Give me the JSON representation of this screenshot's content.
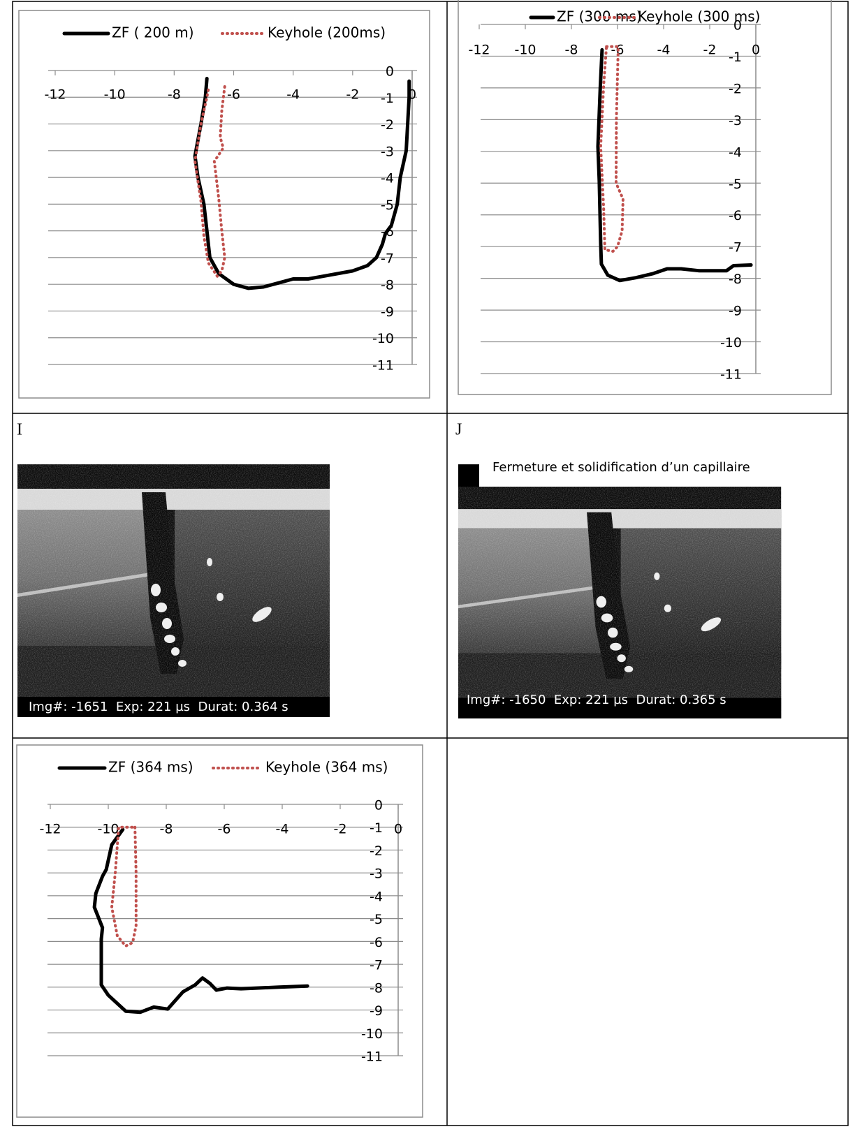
{
  "chart_data": [
    {
      "type": "line",
      "xlim": [
        -12,
        0
      ],
      "ylim": [
        -11,
        0
      ],
      "xticks": [
        -12,
        -10,
        -8,
        -6,
        -4,
        -2,
        0
      ],
      "yticks": [
        0,
        -1,
        -2,
        -3,
        -4,
        -5,
        -6,
        -7,
        -8,
        -9,
        -10,
        -11
      ],
      "grid": true,
      "series": [
        {
          "name": "ZF ( 200 m)",
          "color": "#000000",
          "style": "solid",
          "x": [
            -6.9,
            -6.95,
            -7.1,
            -7.3,
            -7.2,
            -7.0,
            -6.9,
            -6.8,
            -6.5,
            -6.0,
            -5.5,
            -5.0,
            -4.5,
            -4.0,
            -3.5,
            -3.0,
            -2.0,
            -1.5,
            -1.2,
            -1.0,
            -0.9,
            -0.7,
            -0.5,
            -0.4,
            -0.2,
            -0.15,
            -0.1,
            -0.1
          ],
          "values": [
            -0.3,
            -1,
            -2,
            -3.2,
            -4,
            -5,
            -6,
            -7,
            -7.6,
            -8,
            -8.15,
            -8.1,
            -7.95,
            -7.8,
            -7.8,
            -7.7,
            -7.5,
            -7.3,
            -7.0,
            -6.5,
            -6.1,
            -5.8,
            -5,
            -4,
            -3,
            -2,
            -1,
            -0.4
          ]
        },
        {
          "name": "Keyhole (200ms)",
          "color": "#c0504d",
          "style": "dotted",
          "x": [
            -6.3,
            -6.4,
            -6.45,
            -6.35,
            -6.65,
            -6.5,
            -6.4,
            -6.3,
            -6.4,
            -6.55,
            -6.85,
            -7.0,
            -7.1,
            -7.3,
            -7.1,
            -6.9,
            -6.85
          ],
          "values": [
            -0.6,
            -1.5,
            -2.5,
            -2.9,
            -3.4,
            -4.8,
            -6.0,
            -7.0,
            -7.5,
            -7.7,
            -7.2,
            -6.2,
            -4.9,
            -3.4,
            -2.0,
            -1.0,
            -0.7
          ]
        }
      ]
    },
    {
      "type": "line",
      "xlim": [
        -12,
        0
      ],
      "ylim": [
        -11,
        0
      ],
      "xticks": [
        -12,
        -10,
        -8,
        -6,
        -4,
        -2,
        0
      ],
      "yticks": [
        0,
        -1,
        -2,
        -3,
        -4,
        -5,
        -6,
        -7,
        -8,
        -9,
        -10,
        -11
      ],
      "grid": true,
      "series": [
        {
          "name": "ZF (300 ms)",
          "color": "#000000",
          "style": "solid",
          "x": [
            -6.67,
            -6.75,
            -6.85,
            -6.79,
            -6.73,
            -6.7,
            -6.42,
            -5.9,
            -5.2,
            -4.45,
            -3.85,
            -3.24,
            -2.48,
            -1.27,
            -0.97,
            -0.21
          ],
          "values": [
            -0.8,
            -2,
            -3.85,
            -4.95,
            -6.9,
            -7.55,
            -7.9,
            -8.07,
            -7.98,
            -7.85,
            -7.7,
            -7.7,
            -7.76,
            -7.76,
            -7.6,
            -7.58
          ]
        },
        {
          "name": "Keyhole (300 ms)",
          "color": "#c0504d",
          "style": "dotted",
          "x": [
            -6.48,
            -5.97,
            -6.05,
            -6.06,
            -5.76,
            -5.8,
            -6.0,
            -6.2,
            -6.55,
            -6.6,
            -6.73,
            -6.6,
            -6.48
          ],
          "values": [
            -0.7,
            -0.7,
            -3,
            -5.0,
            -5.5,
            -6.5,
            -7.0,
            -7.15,
            -7.1,
            -5.8,
            -3.85,
            -1.9,
            -0.7
          ]
        }
      ]
    },
    {
      "type": "line",
      "xlim": [
        -12,
        0
      ],
      "ylim": [
        -11,
        0
      ],
      "xticks": [
        -12,
        -10,
        -8,
        -6,
        -4,
        -2,
        0
      ],
      "yticks": [
        0,
        -1,
        -2,
        -3,
        -4,
        -5,
        -6,
        -7,
        -8,
        -9,
        -10,
        -11
      ],
      "grid": true,
      "series": [
        {
          "name": "ZF (364 ms)",
          "color": "#000000",
          "style": "solid",
          "x": [
            -9.5,
            -9.88,
            -10.07,
            -10.2,
            -10.43,
            -10.48,
            -10.2,
            -10.24,
            -10.24,
            -10.0,
            -9.4,
            -8.9,
            -8.43,
            -7.95,
            -7.42,
            -7.0,
            -6.75,
            -6.5,
            -6.27,
            -5.9,
            -5.42,
            -4.1,
            -3.13
          ],
          "values": [
            -1.1,
            -1.77,
            -2.85,
            -3.15,
            -3.9,
            -4.5,
            -5.4,
            -5.9,
            -7.9,
            -8.35,
            -9.05,
            -9.1,
            -8.87,
            -8.96,
            -8.2,
            -7.9,
            -7.6,
            -7.83,
            -8.13,
            -8.04,
            -8.07,
            -8.0,
            -7.95
          ]
        },
        {
          "name": "Keyhole (364 ms)",
          "color": "#c0504d",
          "style": "dotted",
          "x": [
            -9.08,
            -9.04,
            -9.04,
            -9.16,
            -9.4,
            -9.69,
            -9.88,
            -9.76,
            -9.64,
            -9.08
          ],
          "values": [
            -1.0,
            -3.0,
            -5.3,
            -6.05,
            -6.2,
            -5.75,
            -4.5,
            -3.0,
            -1.0,
            -1.0
          ]
        }
      ]
    }
  ],
  "panels": [
    {
      "label": "I",
      "caption": "Img#: -1651  Exp: 221 µs  Durat: 0.364 s"
    },
    {
      "label": "J",
      "title": "Fermeture et solidification d’un capillaire",
      "caption": "Img#: -1650  Exp: 221 µs  Durat: 0.365 s"
    }
  ]
}
